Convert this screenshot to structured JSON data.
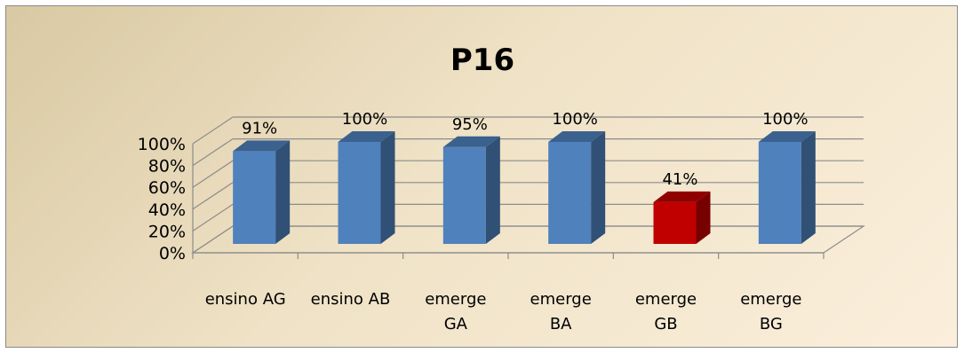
{
  "chart_data": {
    "type": "bar",
    "title": "P16",
    "categories": [
      [
        "ensino AG"
      ],
      [
        "ensino AB"
      ],
      [
        "emerge",
        "GA"
      ],
      [
        "emerge",
        "BA"
      ],
      [
        "emerge",
        "GB"
      ],
      [
        "emerge",
        "BG"
      ]
    ],
    "values": [
      91,
      100,
      95,
      100,
      41,
      100
    ],
    "data_labels": [
      "91%",
      "100%",
      "95%",
      "100%",
      "41%",
      "100%"
    ],
    "ylim": [
      0,
      100
    ],
    "ytick_labels": [
      "0%",
      "20%",
      "40%",
      "60%",
      "80%",
      "100%"
    ],
    "grid": true,
    "bar_colors": [
      "#4f81bd",
      "#4f81bd",
      "#4f81bd",
      "#4f81bd",
      "#c00000",
      "#4f81bd"
    ]
  }
}
